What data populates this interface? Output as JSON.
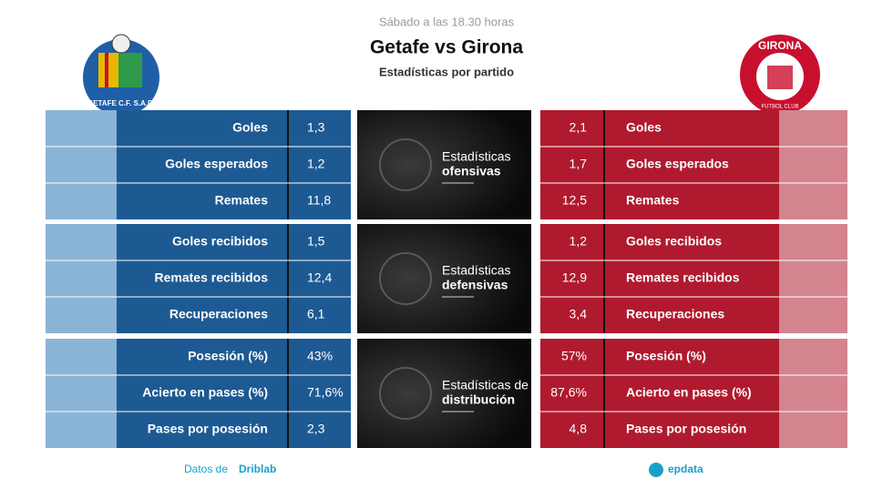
{
  "header": {
    "subtitle": "Sábado a las 18.30 horas",
    "title": "Getafe vs Girona",
    "caption": "Estadísticas por partido"
  },
  "teams": {
    "home": {
      "logo_text": "GETAFE C.F. S.A.D."
    },
    "away": {
      "logo_top": "GIRONA",
      "logo_bottom": "FUTBOL CLUB"
    }
  },
  "sections": [
    {
      "title_line1": "Estadísticas",
      "title_line2": "ofensivas",
      "rows": [
        {
          "label": "Goles",
          "home": "1,3",
          "away": "2,1"
        },
        {
          "label": "Goles esperados",
          "home": "1,2",
          "away": "1,7"
        },
        {
          "label": "Remates",
          "home": "11,8",
          "away": "12,5"
        }
      ]
    },
    {
      "title_line1": "Estadísticas",
      "title_line2": "defensivas",
      "rows": [
        {
          "label": "Goles recibidos",
          "home": "1,5",
          "away": "1,2"
        },
        {
          "label": "Remates recibidos",
          "home": "12,4",
          "away": "12,9"
        },
        {
          "label": "Recuperaciones",
          "home": "6,1",
          "away": "3,4"
        }
      ]
    },
    {
      "title_line1": "Estadísticas de",
      "title_line2": "distribución",
      "rows": [
        {
          "label": "Posesión (%)",
          "home": "43%",
          "away": "57%"
        },
        {
          "label": "Acierto en pases (%)",
          "home": "71,6%",
          "away": "87,6%"
        },
        {
          "label": "Pases por posesión",
          "home": "2,3",
          "away": "4,8"
        }
      ]
    }
  ],
  "footer": {
    "source_prefix": "Datos de",
    "source": "Driblab",
    "brand": "epdata"
  }
}
